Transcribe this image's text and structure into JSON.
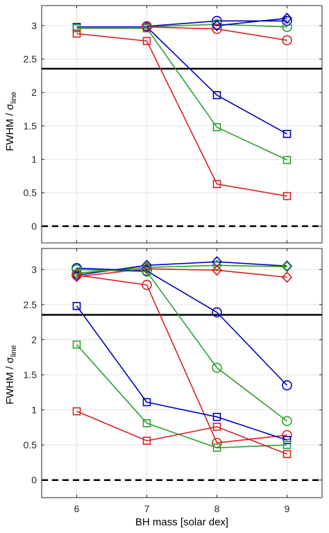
{
  "figure": {
    "xlabel": "BH mass [solar dex]",
    "ylabel_main": "FWHM / σ",
    "ylabel_sub": "line"
  },
  "chart_data": [
    {
      "type": "line",
      "panel": "top",
      "xlim": [
        5.5,
        9.5
      ],
      "ylim": [
        -0.25,
        3.3
      ],
      "xticks": [
        "6",
        "7",
        "8",
        "9"
      ],
      "yticks": [
        "0",
        "0.5",
        "1",
        "1.5",
        "2",
        "2.5",
        "3"
      ],
      "grid": true,
      "reference_lines": [
        {
          "y": 2.355,
          "style": "solid",
          "color": "#000000"
        },
        {
          "y": 0,
          "style": "dashed",
          "color": "#000000"
        }
      ],
      "series": [
        {
          "color": "#0000c0",
          "marker": "square",
          "x": [
            6,
            7,
            8,
            9
          ],
          "y": [
            2.98,
            2.98,
            1.96,
            1.38
          ]
        },
        {
          "color": "#2ca02c",
          "marker": "square",
          "x": [
            6,
            7,
            8,
            9
          ],
          "y": [
            2.96,
            2.96,
            1.48,
            0.99
          ]
        },
        {
          "color": "#d62020",
          "marker": "square",
          "x": [
            6,
            7,
            8,
            9
          ],
          "y": [
            2.88,
            2.77,
            0.63,
            0.45
          ]
        },
        {
          "color": "#0000c0",
          "marker": "circle",
          "x": [
            7,
            8,
            9
          ],
          "y": [
            2.99,
            3.07,
            3.07
          ]
        },
        {
          "color": "#2ca02c",
          "marker": "circle",
          "x": [
            7,
            8,
            9
          ],
          "y": [
            2.98,
            3.02,
            2.98
          ]
        },
        {
          "color": "#d62020",
          "marker": "circle",
          "x": [
            7,
            8,
            9
          ],
          "y": [
            2.98,
            2.95,
            2.78
          ]
        },
        {
          "color": "#0000c0",
          "marker": "diamond",
          "x": [
            8,
            9
          ],
          "y": [
            3.0,
            3.11
          ]
        }
      ]
    },
    {
      "type": "line",
      "panel": "bottom",
      "xlim": [
        5.5,
        9.5
      ],
      "ylim": [
        -0.25,
        3.3
      ],
      "xticks": [
        "6",
        "7",
        "8",
        "9"
      ],
      "yticks": [
        "0",
        "0.5",
        "1",
        "1.5",
        "2",
        "2.5",
        "3"
      ],
      "grid": true,
      "reference_lines": [
        {
          "y": 2.355,
          "style": "solid",
          "color": "#000000"
        },
        {
          "y": 0,
          "style": "dashed",
          "color": "#000000"
        }
      ],
      "series": [
        {
          "color": "#0000c0",
          "marker": "diamond",
          "x": [
            6,
            7,
            8,
            9
          ],
          "y": [
            2.92,
            3.06,
            3.11,
            3.05
          ]
        },
        {
          "color": "#2ca02c",
          "marker": "diamond",
          "x": [
            6,
            7,
            8,
            9
          ],
          "y": [
            2.95,
            3.03,
            3.06,
            3.04
          ]
        },
        {
          "color": "#d62020",
          "marker": "diamond",
          "x": [
            6,
            7,
            8,
            9
          ],
          "y": [
            2.9,
            3.01,
            2.99,
            2.89
          ]
        },
        {
          "color": "#0000c0",
          "marker": "circle",
          "x": [
            6,
            7,
            8,
            9
          ],
          "y": [
            3.02,
            2.98,
            2.39,
            1.35
          ]
        },
        {
          "color": "#2ca02c",
          "marker": "circle",
          "x": [
            6,
            7,
            8,
            9
          ],
          "y": [
            3.0,
            2.97,
            1.6,
            0.84
          ]
        },
        {
          "color": "#d62020",
          "marker": "circle",
          "x": [
            6,
            7,
            8,
            9
          ],
          "y": [
            2.92,
            2.78,
            0.53,
            0.64
          ]
        },
        {
          "color": "#0000c0",
          "marker": "square",
          "x": [
            6,
            7,
            8,
            9
          ],
          "y": [
            2.48,
            1.11,
            0.9,
            0.57
          ]
        },
        {
          "color": "#2ca02c",
          "marker": "square",
          "x": [
            6,
            7,
            8,
            9
          ],
          "y": [
            1.93,
            0.81,
            0.46,
            0.5
          ]
        },
        {
          "color": "#d62020",
          "marker": "square",
          "x": [
            6,
            7,
            8,
            9
          ],
          "y": [
            0.98,
            0.56,
            0.76,
            0.37
          ]
        }
      ]
    }
  ]
}
